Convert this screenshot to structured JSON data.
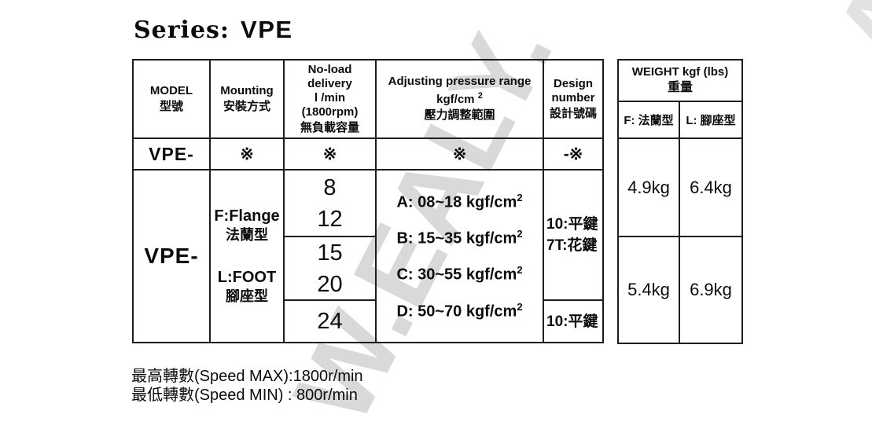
{
  "title": {
    "series_label": "Series:",
    "series_value": "VPE"
  },
  "watermark": {
    "text": "W.EALY.",
    "fragment": "A",
    "color": "#d9d9d9"
  },
  "spec_table": {
    "header": {
      "model": {
        "en": "MODEL",
        "zh": "型號"
      },
      "mounting": {
        "en": "Mounting",
        "zh": "安裝方式"
      },
      "delivery": {
        "l1": "No-load",
        "l2": "delivery",
        "l3": "l /min",
        "l4": "(1800rpm)",
        "zh": "無負載容量"
      },
      "pressure": {
        "l1": "Adjusting pressure range",
        "l2": "kgf/cm",
        "sup": "2",
        "zh": "壓力調整範圍"
      },
      "design": {
        "l1": "Design",
        "l2": "number",
        "zh": "設計號碼"
      }
    },
    "code_row": {
      "model": "VPE-",
      "mounting": "※",
      "delivery": "※",
      "pressure": "※",
      "design": "-※"
    },
    "body": {
      "model": "VPE-",
      "mounting": {
        "f_en": "F:Flange",
        "f_zh": "法蘭型",
        "l_en": "L:FOOT",
        "l_zh": "腳座型"
      },
      "delivery_groups": [
        [
          "8",
          "12"
        ],
        [
          "15",
          "20"
        ],
        [
          "24"
        ]
      ],
      "pressure_options": [
        {
          "label": "A: 08~18 kgf/cm",
          "sup": "2"
        },
        {
          "label": "B: 15~35 kgf/cm",
          "sup": "2"
        },
        {
          "label": "C: 30~55 kgf/cm",
          "sup": "2"
        },
        {
          "label": "D: 50~70 kgf/cm",
          "sup": "2"
        }
      ],
      "design_top": {
        "l1": "10:平鍵",
        "l2": "7T:花鍵"
      },
      "design_bottom": "10:平鍵"
    }
  },
  "weight_table": {
    "title_en": "WEIGHT kgf (lbs)",
    "title_zh": "重量",
    "col_flange": "F: 法蘭型",
    "col_foot": "L: 腳座型",
    "rows": [
      [
        "4.9kg",
        "6.4kg"
      ],
      [
        "5.4kg",
        "6.9kg"
      ]
    ]
  },
  "notes": {
    "speed_max": "最高轉數(Speed MAX):1800r/min",
    "speed_min": "最低轉數(Speed MIN) : 800r/min"
  }
}
